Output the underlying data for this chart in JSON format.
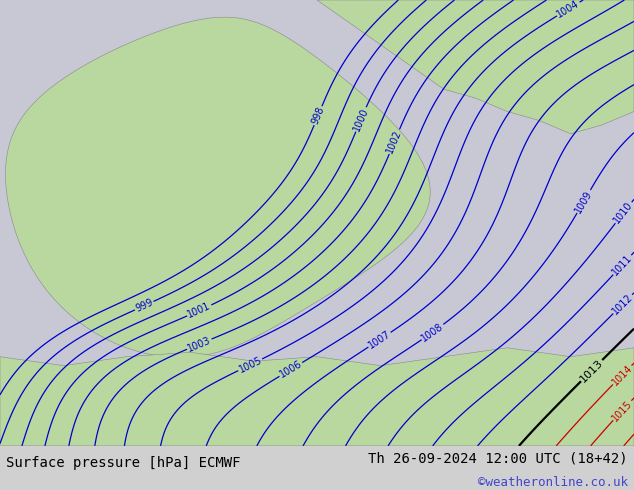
{
  "title_left": "Surface pressure [hPa] ECMWF",
  "title_right": "Th 26-09-2024 12:00 UTC (18+42)",
  "credit": "©weatheronline.co.uk",
  "bg_color_ocean": "#c8c8d4",
  "bg_color_land": "#b8d8a0",
  "contour_color_blue": "#0000cc",
  "contour_color_black": "#000000",
  "contour_color_red": "#cc0000",
  "label_fontsize": 7,
  "footer_fontsize": 10,
  "credit_fontsize": 9,
  "credit_color": "#4444cc",
  "footer_bg": "#d0d0d0"
}
